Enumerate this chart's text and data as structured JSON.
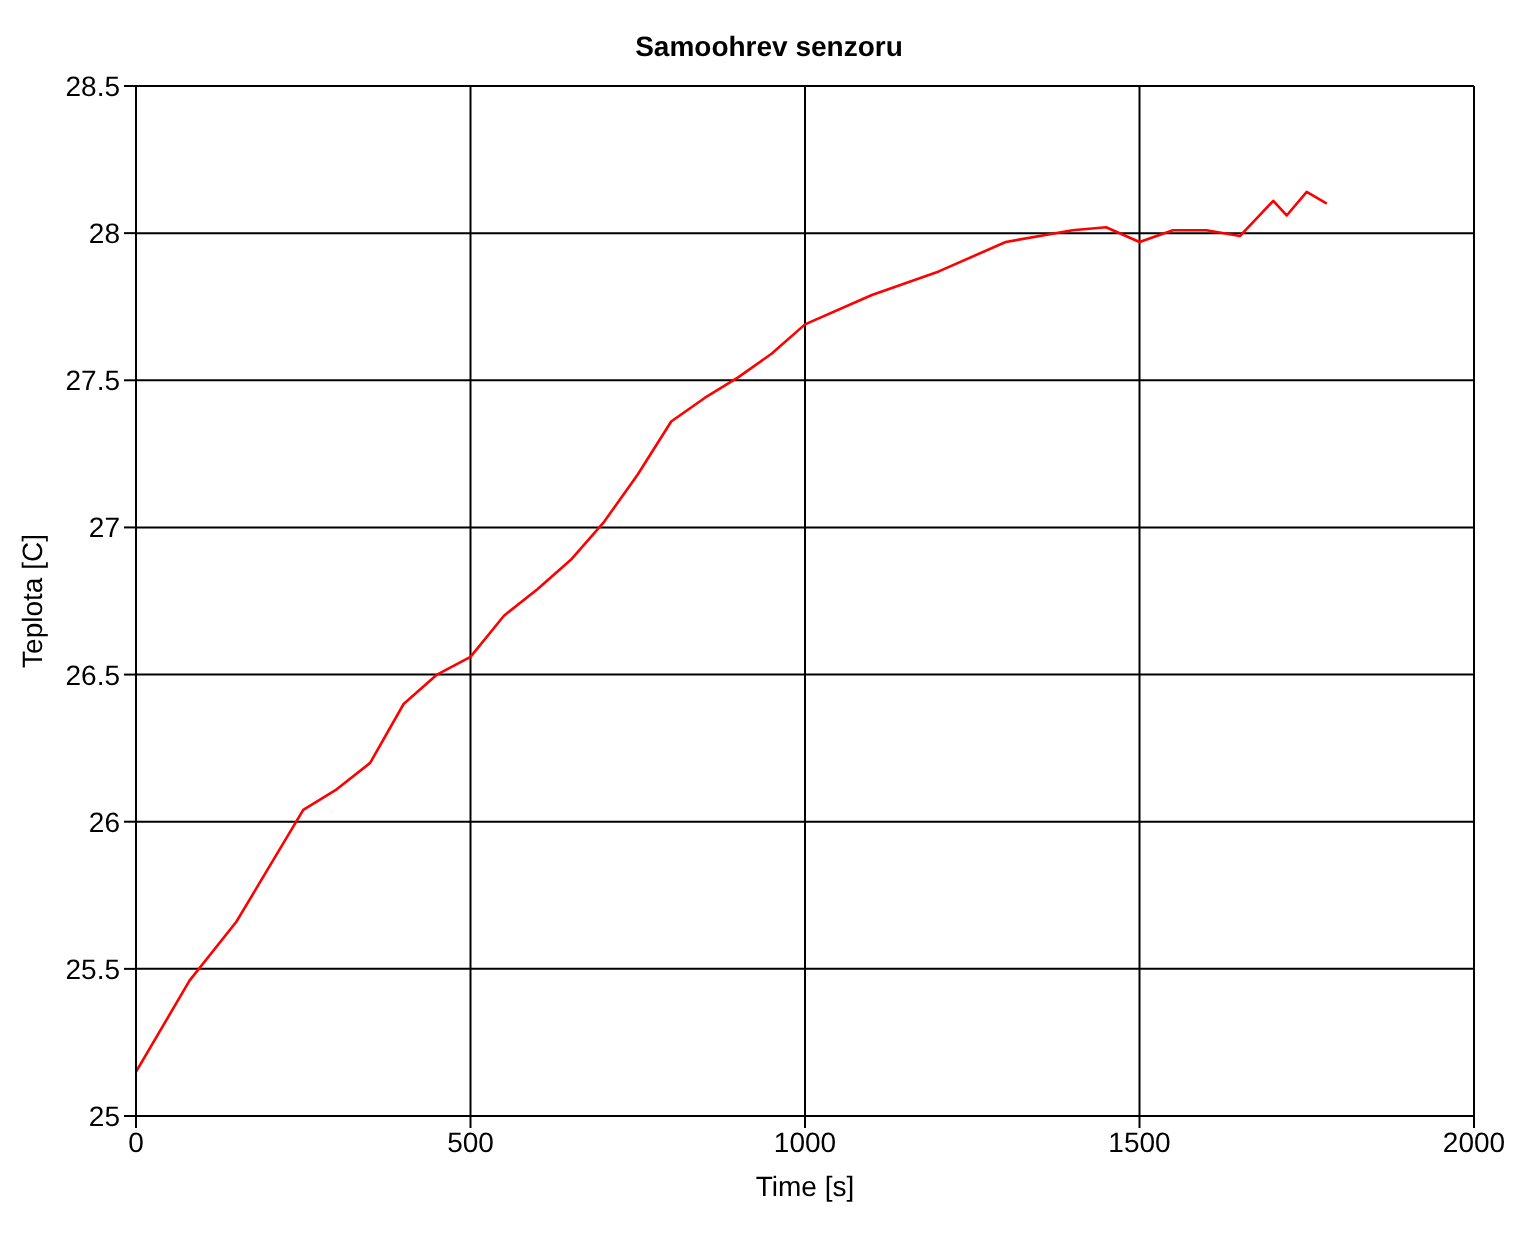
{
  "chart_data": {
    "type": "line",
    "title": "Samoohrev senzoru",
    "xlabel": "Time [s]",
    "ylabel": "Teplota [C]",
    "x": [
      0,
      80,
      150,
      250,
      300,
      350,
      400,
      450,
      500,
      550,
      600,
      650,
      700,
      750,
      800,
      850,
      900,
      950,
      1000,
      1100,
      1200,
      1300,
      1400,
      1450,
      1500,
      1550,
      1600,
      1650,
      1700,
      1720,
      1750,
      1780
    ],
    "series": [
      {
        "color": "#ff0000",
        "values": [
          25.15,
          25.46,
          25.66,
          26.04,
          26.11,
          26.2,
          26.4,
          26.5,
          26.56,
          26.7,
          26.79,
          26.89,
          27.02,
          27.18,
          27.36,
          27.44,
          27.51,
          27.59,
          27.69,
          27.79,
          27.87,
          27.97,
          28.01,
          28.02,
          27.97,
          28.01,
          28.01,
          27.99,
          28.11,
          28.06,
          28.14,
          28.1
        ]
      }
    ],
    "xlim": [
      0,
      2000
    ],
    "xticks": [
      0,
      500,
      1000,
      1500,
      2000
    ],
    "ylim": [
      25,
      28.5
    ],
    "yticks": [
      25,
      25.5,
      26,
      26.5,
      27,
      27.5,
      28,
      28.5
    ],
    "grid": true,
    "legend": false,
    "marker": "none",
    "line_style": "solid"
  }
}
